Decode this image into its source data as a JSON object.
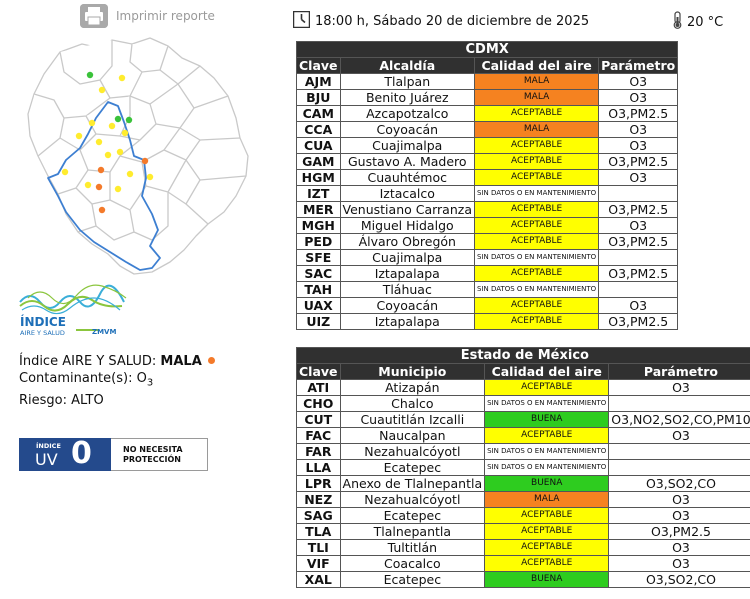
{
  "print": {
    "label": "Imprimir reporte",
    "icon": "printer-icon"
  },
  "header": {
    "datetime": "18:00 h, Sábado 20 de diciembre de 2025",
    "temperature": "20 °C",
    "clock_icon": "clock-icon",
    "thermometer_icon": "thermometer-icon"
  },
  "colors": {
    "MALA": "#f58220",
    "ACEPTABLE": "#ffff00",
    "BUENA": "#2ecc1f",
    "NONE": "#ffffff",
    "map_green": "#3ac23a",
    "map_yellow": "#ffec2e",
    "map_orange": "#f47a2a",
    "boundary": "#3d7fd1",
    "uv_blue": "#244a8c"
  },
  "cdmx": {
    "title": "CDMX",
    "headers": [
      "Clave",
      "Alcaldía",
      "Calidad del aire",
      "Parámetro"
    ],
    "rows": [
      {
        "clave": "AJM",
        "lugar": "Tlalpan",
        "calidad": "MALA",
        "nivel": "MALA",
        "param": "O3"
      },
      {
        "clave": "BJU",
        "lugar": "Benito Juárez",
        "calidad": "MALA",
        "nivel": "MALA",
        "param": "O3"
      },
      {
        "clave": "CAM",
        "lugar": "Azcapotzalco",
        "calidad": "ACEPTABLE",
        "nivel": "ACEPTABLE",
        "param": "O3,PM2.5"
      },
      {
        "clave": "CCA",
        "lugar": "Coyoacán",
        "calidad": "MALA",
        "nivel": "MALA",
        "param": "O3"
      },
      {
        "clave": "CUA",
        "lugar": "Cuajimalpa",
        "calidad": "ACEPTABLE",
        "nivel": "ACEPTABLE",
        "param": "O3"
      },
      {
        "clave": "GAM",
        "lugar": "Gustavo A. Madero",
        "calidad": "ACEPTABLE",
        "nivel": "ACEPTABLE",
        "param": "O3,PM2.5"
      },
      {
        "clave": "HGM",
        "lugar": "Cuauhtémoc",
        "calidad": "ACEPTABLE",
        "nivel": "ACEPTABLE",
        "param": "O3"
      },
      {
        "clave": "IZT",
        "lugar": "Iztacalco",
        "calidad": "SIN DATOS O EN MANTENIMIENTO",
        "nivel": "NONE",
        "param": ""
      },
      {
        "clave": "MER",
        "lugar": "Venustiano Carranza",
        "calidad": "ACEPTABLE",
        "nivel": "ACEPTABLE",
        "param": "O3,PM2.5"
      },
      {
        "clave": "MGH",
        "lugar": "Miguel Hidalgo",
        "calidad": "ACEPTABLE",
        "nivel": "ACEPTABLE",
        "param": "O3"
      },
      {
        "clave": "PED",
        "lugar": "Álvaro Obregón",
        "calidad": "ACEPTABLE",
        "nivel": "ACEPTABLE",
        "param": "O3,PM2.5"
      },
      {
        "clave": "SFE",
        "lugar": "Cuajimalpa",
        "calidad": "SIN DATOS O EN MANTENIMIENTO",
        "nivel": "NONE",
        "param": ""
      },
      {
        "clave": "SAC",
        "lugar": "Iztapalapa",
        "calidad": "ACEPTABLE",
        "nivel": "ACEPTABLE",
        "param": "O3,PM2.5"
      },
      {
        "clave": "TAH",
        "lugar": "Tláhuac",
        "calidad": "SIN DATOS O EN MANTENIMIENTO",
        "nivel": "NONE",
        "param": ""
      },
      {
        "clave": "UAX",
        "lugar": "Coyoacán",
        "calidad": "ACEPTABLE",
        "nivel": "ACEPTABLE",
        "param": "O3"
      },
      {
        "clave": "UIZ",
        "lugar": "Iztapalapa",
        "calidad": "ACEPTABLE",
        "nivel": "ACEPTABLE",
        "param": "O3,PM2.5"
      }
    ]
  },
  "edomex": {
    "title": "Estado de México",
    "headers": [
      "Clave",
      "Municipio",
      "Calidad del aire",
      "Parámetro"
    ],
    "rows": [
      {
        "clave": "ATI",
        "lugar": "Atizapán",
        "calidad": "ACEPTABLE",
        "nivel": "ACEPTABLE",
        "param": "O3"
      },
      {
        "clave": "CHO",
        "lugar": "Chalco",
        "calidad": "SIN DATOS O EN MANTENIMIENTO",
        "nivel": "NONE",
        "param": ""
      },
      {
        "clave": "CUT",
        "lugar": "Cuautitlán Izcalli",
        "calidad": "BUENA",
        "nivel": "BUENA",
        "param": "O3,NO2,SO2,CO,PM10"
      },
      {
        "clave": "FAC",
        "lugar": "Naucalpan",
        "calidad": "ACEPTABLE",
        "nivel": "ACEPTABLE",
        "param": "O3"
      },
      {
        "clave": "FAR",
        "lugar": "Nezahualcóyotl",
        "calidad": "SIN DATOS O EN MANTENIMIENTO",
        "nivel": "NONE",
        "param": ""
      },
      {
        "clave": "LLA",
        "lugar": "Ecatepec",
        "calidad": "SIN DATOS O EN MANTENIMIENTO",
        "nivel": "NONE",
        "param": ""
      },
      {
        "clave": "LPR",
        "lugar": "Anexo de Tlalnepantla",
        "calidad": "BUENA",
        "nivel": "BUENA",
        "param": "O3,SO2,CO"
      },
      {
        "clave": "NEZ",
        "lugar": "Nezahualcóyotl",
        "calidad": "MALA",
        "nivel": "MALA",
        "param": "O3"
      },
      {
        "clave": "SAG",
        "lugar": "Ecatepec",
        "calidad": "ACEPTABLE",
        "nivel": "ACEPTABLE",
        "param": "O3"
      },
      {
        "clave": "TLA",
        "lugar": "Tlalnepantla",
        "calidad": "ACEPTABLE",
        "nivel": "ACEPTABLE",
        "param": "O3,PM2.5"
      },
      {
        "clave": "TLI",
        "lugar": "Tultitlán",
        "calidad": "ACEPTABLE",
        "nivel": "ACEPTABLE",
        "param": "O3"
      },
      {
        "clave": "VIF",
        "lugar": "Coacalco",
        "calidad": "ACEPTABLE",
        "nivel": "ACEPTABLE",
        "param": "O3"
      },
      {
        "clave": "XAL",
        "lugar": "Ecatepec",
        "calidad": "BUENA",
        "nivel": "BUENA",
        "param": "O3,SO2,CO"
      }
    ]
  },
  "logo": {
    "line1": "ÍNDICE",
    "line2": "AIRE Y SALUD",
    "line3": "ZMVM"
  },
  "summary": {
    "indice_label": "Índice AIRE Y SALUD:",
    "indice_value": "MALA",
    "contaminante_label": "Contaminante(s):",
    "contaminante_value": "O",
    "contaminante_sub": "3",
    "riesgo_label": "Riesgo:",
    "riesgo_value": "ALTO"
  },
  "uv": {
    "label_top": "ÍNDICE",
    "label_bottom": "UV",
    "value": "0",
    "note_line1": "NO NECESITA",
    "note_line2": "PROTECCIÓN"
  }
}
